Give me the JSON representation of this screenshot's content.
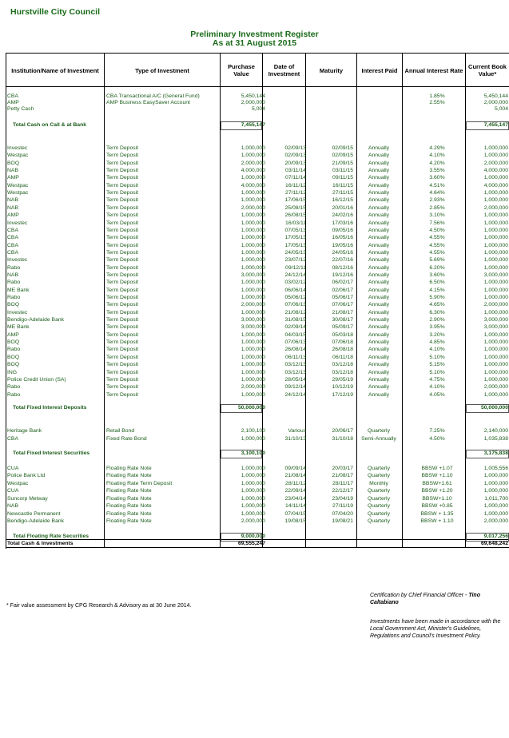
{
  "org": "Hurstville City Council",
  "title": "Preliminary Investment Register",
  "subtitle": "As at 31 August 2015",
  "headers": {
    "institution": "Institution/Name of Investment",
    "type": "Type of Investment",
    "purchase": "Purchase Value",
    "date": "Date of Investment",
    "maturity": "Maturity",
    "interest_paid": "Interest Paid",
    "rate": "Annual Interest Rate",
    "current": "Current Book Value*"
  },
  "cash_rows": [
    {
      "inst": "CBA",
      "type": "CBA Transactional A/C (General Fund)",
      "pv": "5,450,144",
      "di": "",
      "mat": "",
      "ip": "",
      "air": "1.85%",
      "cbv": "5,450,144"
    },
    {
      "inst": "AMP",
      "type": "AMP Business EasySaver Account",
      "pv": "2,000,000",
      "di": "",
      "mat": "",
      "ip": "",
      "air": "2.55%",
      "cbv": "2,000,000"
    },
    {
      "inst": "Petty Cash",
      "type": "",
      "pv": "5,004",
      "di": "",
      "mat": "",
      "ip": "",
      "air": "",
      "cbv": "5,004"
    }
  ],
  "cash_total": {
    "label": "Total Cash on Call & at Bank",
    "pv": "7,455,147",
    "cbv": "7,455,147"
  },
  "fixed_rows": [
    {
      "inst": "Investec",
      "type": "Term Deposit",
      "pv": "1,000,000",
      "di": "02/09/13",
      "mat": "02/09/15",
      "ip": "Annually",
      "air": "4.29%",
      "cbv": "1,000,000"
    },
    {
      "inst": "Westpac",
      "type": "Term Deposit",
      "pv": "1,000,000",
      "di": "02/09/13",
      "mat": "02/09/15",
      "ip": "Annually",
      "air": "4.10%",
      "cbv": "1,000,000"
    },
    {
      "inst": "BOQ",
      "type": "Term Deposit",
      "pv": "2,000,000",
      "di": "20/09/13",
      "mat": "21/09/15",
      "ip": "Annually",
      "air": "4.20%",
      "cbv": "2,000,000"
    },
    {
      "inst": "NAB",
      "type": "Term Deposit",
      "pv": "4,000,000",
      "di": "03/11/14",
      "mat": "03/11/15",
      "ip": "Annually",
      "air": "3.55%",
      "cbv": "4,000,000"
    },
    {
      "inst": "AMP",
      "type": "Term Deposit",
      "pv": "1,000,000",
      "di": "07/11/14",
      "mat": "09/11/15",
      "ip": "Annually",
      "air": "3.60%",
      "cbv": "1,000,000"
    },
    {
      "inst": "Westpac",
      "type": "Term Deposit",
      "pv": "4,000,000",
      "di": "16/11/12",
      "mat": "16/11/15",
      "ip": "Annually",
      "air": "4.51%",
      "cbv": "4,000,000"
    },
    {
      "inst": "Westpac",
      "type": "Term Deposit",
      "pv": "1,000,000",
      "di": "27/11/12",
      "mat": "27/11/15",
      "ip": "Annually",
      "air": "4.64%",
      "cbv": "1,000,000"
    },
    {
      "inst": "NAB",
      "type": "Term Deposit",
      "pv": "1,000,000",
      "di": "17/06/15",
      "mat": "16/12/15",
      "ip": "Annually",
      "air": "2.93%",
      "cbv": "1,000,000"
    },
    {
      "inst": "NAB",
      "type": "Term Deposit",
      "pv": "2,000,000",
      "di": "25/08/15",
      "mat": "20/01/16",
      "ip": "Annually",
      "air": "2.85%",
      "cbv": "2,000,000"
    },
    {
      "inst": "AMP",
      "type": "Term Deposit",
      "pv": "1,000,000",
      "di": "26/08/15",
      "mat": "24/02/16",
      "ip": "Annually",
      "air": "3.10%",
      "cbv": "1,000,000"
    },
    {
      "inst": "Investec",
      "type": "Term Deposit",
      "pv": "1,000,000",
      "di": "16/03/11",
      "mat": "17/03/16",
      "ip": "Annually",
      "air": "7.56%",
      "cbv": "1,000,000"
    },
    {
      "inst": "CBA",
      "type": "Term Deposit",
      "pv": "1,000,000",
      "di": "07/05/13",
      "mat": "09/05/16",
      "ip": "Annually",
      "air": "4.50%",
      "cbv": "1,000,000"
    },
    {
      "inst": "CBA",
      "type": "Term Deposit",
      "pv": "1,000,000",
      "di": "17/05/13",
      "mat": "16/05/16",
      "ip": "Annually",
      "air": "4.55%",
      "cbv": "1,000,000"
    },
    {
      "inst": "CBA",
      "type": "Term Deposit",
      "pv": "1,000,000",
      "di": "17/05/13",
      "mat": "19/05/16",
      "ip": "Annually",
      "air": "4.55%",
      "cbv": "1,000,000"
    },
    {
      "inst": "CBA",
      "type": "Term Deposit",
      "pv": "1,000,000",
      "di": "24/05/13",
      "mat": "24/05/16",
      "ip": "Annually",
      "air": "4.55%",
      "cbv": "1,000,000"
    },
    {
      "inst": "Investec",
      "type": "Term Deposit",
      "pv": "1,000,000",
      "di": "23/07/12",
      "mat": "22/07/16",
      "ip": "Annually",
      "air": "5.69%",
      "cbv": "1,000,000"
    },
    {
      "inst": "Rabo",
      "type": "Term Deposit",
      "pv": "1,000,000",
      "di": "09/12/11",
      "mat": "08/12/16",
      "ip": "Annually",
      "air": "6.20%",
      "cbv": "1,000,000"
    },
    {
      "inst": "NAB",
      "type": "Term Deposit",
      "pv": "3,000,000",
      "di": "24/12/14",
      "mat": "19/12/16",
      "ip": "Annually",
      "air": "3.60%",
      "cbv": "3,000,000"
    },
    {
      "inst": "Rabo",
      "type": "Term Deposit",
      "pv": "1,000,000",
      "di": "03/02/12",
      "mat": "06/02/17",
      "ip": "Annually",
      "air": "6.50%",
      "cbv": "1,000,000"
    },
    {
      "inst": "ME Bank",
      "type": "Term Deposit",
      "pv": "1,000,000",
      "di": "06/06/14",
      "mat": "02/06/17",
      "ip": "Annually",
      "air": "4.15%",
      "cbv": "1,000,000"
    },
    {
      "inst": "Rabo",
      "type": "Term Deposit",
      "pv": "1,000,000",
      "di": "05/06/12",
      "mat": "05/06/17",
      "ip": "Annually",
      "air": "5.90%",
      "cbv": "1,000,000"
    },
    {
      "inst": "BOQ",
      "type": "Term Deposit",
      "pv": "2,000,000",
      "di": "07/06/13",
      "mat": "07/06/17",
      "ip": "Annually",
      "air": "4.65%",
      "cbv": "2,000,000"
    },
    {
      "inst": "Investec",
      "type": "Term Deposit",
      "pv": "1,000,000",
      "di": "21/08/12",
      "mat": "21/08/17",
      "ip": "Annually",
      "air": "6.30%",
      "cbv": "1,000,000"
    },
    {
      "inst": "Bendigo-Adelaide Bank",
      "type": "Term Deposit",
      "pv": "3,000,000",
      "di": "31/08/15",
      "mat": "30/08/17",
      "ip": "Annually",
      "air": "2.90%",
      "cbv": "3,000,000"
    },
    {
      "inst": "ME Bank",
      "type": "Term Deposit",
      "pv": "3,000,000",
      "di": "02/09/14",
      "mat": "05/09/17",
      "ip": "Annually",
      "air": "3.95%",
      "cbv": "3,000,000"
    },
    {
      "inst": "AMP",
      "type": "Term Deposit",
      "pv": "1,000,000",
      "di": "04/03/15",
      "mat": "05/03/18",
      "ip": "Annually",
      "air": "3.20%",
      "cbv": "1,000,000"
    },
    {
      "inst": "BOQ",
      "type": "Term Deposit",
      "pv": "1,000,000",
      "di": "07/06/13",
      "mat": "07/06/18",
      "ip": "Annually",
      "air": "4.85%",
      "cbv": "1,000,000"
    },
    {
      "inst": "Rabo",
      "type": "Term Deposit",
      "pv": "1,000,000",
      "di": "26/08/14",
      "mat": "26/08/18",
      "ip": "Annually",
      "air": "4.10%",
      "cbv": "1,000,000"
    },
    {
      "inst": "BOQ",
      "type": "Term Deposit",
      "pv": "1,000,000",
      "di": "06/11/13",
      "mat": "06/11/18",
      "ip": "Annually",
      "air": "5.10%",
      "cbv": "1,000,000"
    },
    {
      "inst": "BOQ",
      "type": "Term Deposit",
      "pv": "1,000,000",
      "di": "03/12/13",
      "mat": "03/12/18",
      "ip": "Annually",
      "air": "5.15%",
      "cbv": "1,000,000"
    },
    {
      "inst": "ING",
      "type": "Term Deposit",
      "pv": "1,000,000",
      "di": "03/12/13",
      "mat": "03/12/18",
      "ip": "Annually",
      "air": "5.10%",
      "cbv": "1,000,000"
    },
    {
      "inst": "Police Credit Union (SA)",
      "type": "Term Deposit",
      "pv": "1,000,000",
      "di": "28/05/14",
      "mat": "29/05/19",
      "ip": "Annually",
      "air": "4.75%",
      "cbv": "1,000,000"
    },
    {
      "inst": "Rabo",
      "type": "Term Deposit",
      "pv": "2,000,000",
      "di": "09/12/14",
      "mat": "10/12/19",
      "ip": "Annually",
      "air": "4.10%",
      "cbv": "2,000,000"
    },
    {
      "inst": "Rabo",
      "type": "Term Deposit",
      "pv": "1,000,000",
      "di": "24/12/14",
      "mat": "17/12/19",
      "ip": "Annually",
      "air": "4.05%",
      "cbv": "1,000,000"
    }
  ],
  "fixed_total": {
    "label": "Total Fixed Interest Deposits",
    "pv": "50,000,000",
    "cbv": "50,000,000"
  },
  "securities_rows": [
    {
      "inst": "Heritage Bank",
      "type": "Retail Bond",
      "pv": "2,100,100",
      "di": "Various",
      "mat": "20/06/17",
      "ip": "Quarterly",
      "air": "7.25%",
      "cbv": "2,140,000"
    },
    {
      "inst": "CBA",
      "type": "Fixed Rate Bond",
      "pv": "1,000,000",
      "di": "31/10/13",
      "mat": "31/10/18",
      "ip": "Semi-Annually",
      "air": "4.50%",
      "cbv": "1,035,838"
    }
  ],
  "securities_total": {
    "label": "Total Fixed Interest Securities",
    "pv": "3,100,100",
    "cbv": "3,175,838"
  },
  "floating_rows": [
    {
      "inst": "CUA",
      "type": "Floating Rate Note",
      "pv": "1,000,000",
      "di": "09/09/14",
      "mat": "20/03/17",
      "ip": "Quarterly",
      "air": "BBSW +1.07",
      "cbv": "1,005,556"
    },
    {
      "inst": "Police Bank Ltd",
      "type": "Floating Rate Note",
      "pv": "1,000,000",
      "di": "21/08/14",
      "mat": "21/08/17",
      "ip": "Quarterly",
      "air": "BBSW +1.10",
      "cbv": "1,000,000"
    },
    {
      "inst": "Westpac",
      "type": "Floating Rate Term Deposit",
      "pv": "1,000,000",
      "di": "28/11/12",
      "mat": "28/11/17",
      "ip": "Monthly",
      "air": "BBSW+1.61",
      "cbv": "1,000,000"
    },
    {
      "inst": "CUA",
      "type": "Floating Rate Note",
      "pv": "1,000,000",
      "di": "22/09/14",
      "mat": "22/12/17",
      "ip": "Quarterly",
      "air": "BBSW +1.20",
      "cbv": "1,000,000"
    },
    {
      "inst": "Suncorp Metway",
      "type": "Floating Rate Note",
      "pv": "1,000,000",
      "di": "23/04/14",
      "mat": "23/04/19",
      "ip": "Quarterly",
      "air": "BBSW+1.10",
      "cbv": "1,011,700"
    },
    {
      "inst": "NAB",
      "type": "Floating Rate Note",
      "pv": "1,000,000",
      "di": "14/11/14",
      "mat": "27/11/19",
      "ip": "Quarterly",
      "air": "BBSW +0.85",
      "cbv": "1,000,000"
    },
    {
      "inst": "Newcastle Permanent",
      "type": "Floating Rate Note",
      "pv": "1,000,000",
      "di": "07/04/15",
      "mat": "07/04/20",
      "ip": "Quarterly",
      "air": "BBSW + 1.35",
      "cbv": "1,000,000"
    },
    {
      "inst": "Bendigo-Adelaide Bank",
      "type": "Floating Rate Note",
      "pv": "2,000,000",
      "di": "19/08/15",
      "mat": "19/08/21",
      "ip": "Quarterly",
      "air": "BBSW + 1.10",
      "cbv": "2,000,000"
    }
  ],
  "floating_total": {
    "label": "Total Floating Rate Securities",
    "pv": "9,000,000",
    "cbv": "9,017,256"
  },
  "grand_total": {
    "label": "Total Cash & Investments",
    "pv": "69,555,247",
    "cbv": "69,648,242"
  },
  "footnote": "* Fair value assessment by CPG Research & Advisory as at 30 June 2014.",
  "certification_prefix": "Certification by Chief Financial Officer - ",
  "certification_name": "Tino Caltabiano",
  "compliance_note": "Investments have been made in accordance with the Local Government Act, Minister's Guidelines, Regulations and Council's Investment Policy."
}
